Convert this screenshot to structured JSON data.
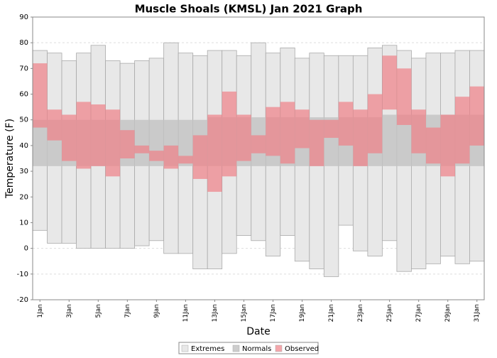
{
  "chart_data": {
    "type": "floating-bar",
    "title": "Muscle Shoals (KMSL) Jan 2021 Graph",
    "xlabel": "Date",
    "ylabel": "Temperature (F)",
    "categories": [
      "1Jan",
      null,
      "3Jan",
      null,
      "5Jan",
      null,
      "7Jan",
      null,
      "9Jan",
      null,
      "11Jan",
      null,
      "13Jan",
      null,
      "15Jan",
      null,
      "17Jan",
      null,
      "19Jan",
      null,
      "21Jan",
      null,
      "23Jan",
      null,
      "25Jan",
      null,
      "27Jan",
      null,
      "29Jan",
      null,
      "31Jan"
    ],
    "ylim": [
      -20,
      90
    ],
    "yticks": [
      -20,
      -10,
      0,
      10,
      20,
      30,
      40,
      50,
      60,
      70,
      80,
      90
    ],
    "grid": true,
    "legend": "bottom",
    "series": [
      {
        "name": "Extremes",
        "color": "#e8e8e8",
        "high": [
          77,
          76,
          73,
          76,
          79,
          73,
          72,
          73,
          74,
          80,
          76,
          75,
          77,
          77,
          75,
          80,
          76,
          78,
          74,
          76,
          75,
          75,
          75,
          78,
          79,
          77,
          74,
          76,
          76,
          77,
          77
        ],
        "low": [
          7,
          2,
          2,
          0,
          0,
          0,
          0,
          1,
          3,
          -2,
          -2,
          -8,
          -8,
          -2,
          5,
          3,
          -3,
          5,
          -5,
          -8,
          -11,
          9,
          -1,
          -3,
          3,
          -9,
          -8,
          -6,
          -3,
          -6,
          -5
        ]
      },
      {
        "name": "Normals",
        "color": "#c4c4c4",
        "high": [
          50,
          50,
          50,
          50,
          50,
          50,
          50,
          50,
          50,
          50,
          50,
          50,
          51,
          51,
          51,
          51,
          51,
          51,
          51,
          51,
          51,
          51,
          51,
          51,
          52,
          52,
          52,
          52,
          52,
          52,
          52
        ],
        "low": [
          32,
          32,
          32,
          32,
          32,
          32,
          32,
          32,
          32,
          32,
          32,
          32,
          32,
          32,
          32,
          32,
          32,
          32,
          32,
          32,
          32,
          32,
          32,
          32,
          32,
          32,
          32,
          32,
          32,
          32,
          32
        ]
      },
      {
        "name": "Observed",
        "color": "#f08088",
        "high": [
          72,
          54,
          52,
          57,
          56,
          54,
          46,
          40,
          38,
          40,
          36,
          44,
          52,
          61,
          52,
          44,
          55,
          57,
          54,
          50,
          50,
          57,
          54,
          60,
          75,
          70,
          54,
          47,
          52,
          59,
          63
        ],
        "low": [
          47,
          42,
          34,
          31,
          32,
          28,
          35,
          37,
          34,
          31,
          33,
          27,
          22,
          28,
          34,
          37,
          36,
          33,
          39,
          32,
          43,
          40,
          32,
          37,
          54,
          48,
          37,
          33,
          28,
          33,
          40
        ]
      }
    ]
  }
}
